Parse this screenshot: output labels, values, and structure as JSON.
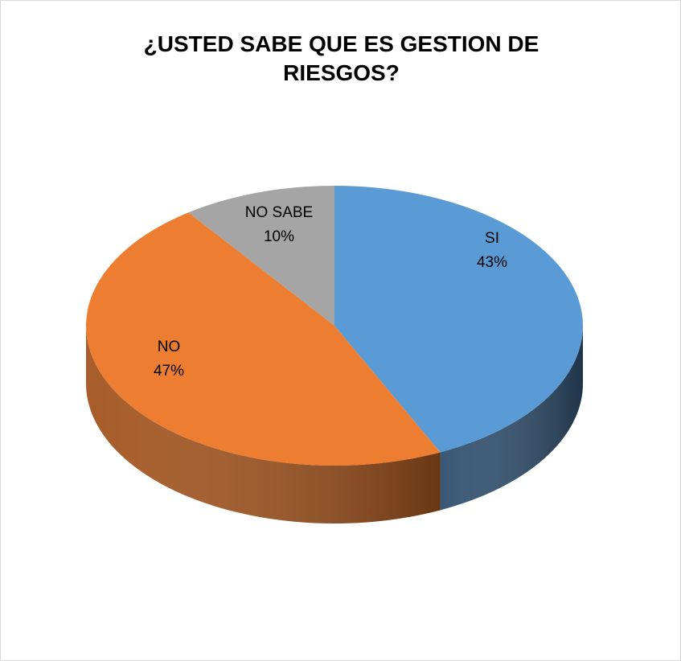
{
  "chart_data": {
    "type": "pie",
    "title_line1": "¿USTED SABE QUE ES GESTION DE",
    "title_line2": "RIESGOS?",
    "three_d": true,
    "slices": [
      {
        "label": "SI",
        "value": 43,
        "percent_label": "43%",
        "color": "#5b9bd5",
        "side_color": "#2f4f6e"
      },
      {
        "label": "NO",
        "value": 47,
        "percent_label": "47%",
        "color": "#ed7d31",
        "side_color": "#a3541e"
      },
      {
        "label": "NO SABE",
        "value": 10,
        "percent_label": "10%",
        "color": "#a5a5a5",
        "side_color": "#6e6e6e"
      }
    ],
    "start_angle_deg": -90,
    "direction": "clockwise"
  }
}
